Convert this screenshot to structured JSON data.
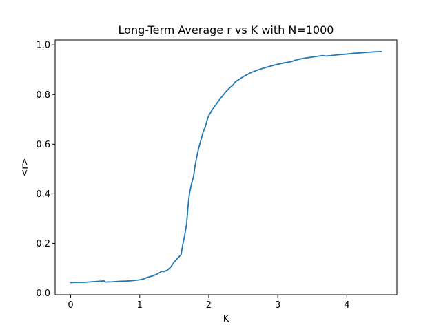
{
  "chart_data": {
    "type": "line",
    "title": "Long-Term Average r vs K with N=1000",
    "xlabel": "K",
    "ylabel": "<r>",
    "xlim": [
      -0.225,
      4.725
    ],
    "ylim": [
      -0.007,
      1.02
    ],
    "xticks": [
      0,
      1,
      2,
      3,
      4
    ],
    "xtick_labels": [
      "0",
      "1",
      "2",
      "3",
      "4"
    ],
    "yticks": [
      0.0,
      0.2,
      0.4,
      0.6,
      0.8,
      1.0
    ],
    "ytick_labels": [
      "0.0",
      "0.2",
      "0.4",
      "0.6",
      "0.8",
      "1.0"
    ],
    "grid": false,
    "legend": "none",
    "series": [
      {
        "color": "#1f77b4",
        "x": [
          0.0,
          0.1,
          0.2,
          0.3,
          0.4,
          0.45,
          0.48,
          0.5,
          0.6,
          0.7,
          0.8,
          0.9,
          1.0,
          1.05,
          1.1,
          1.2,
          1.25,
          1.3,
          1.32,
          1.35,
          1.4,
          1.45,
          1.5,
          1.55,
          1.6,
          1.62,
          1.65,
          1.68,
          1.7,
          1.72,
          1.75,
          1.78,
          1.8,
          1.82,
          1.85,
          1.88,
          1.9,
          1.92,
          1.95,
          1.98,
          2.0,
          2.05,
          2.1,
          2.15,
          2.2,
          2.25,
          2.3,
          2.35,
          2.38,
          2.4,
          2.5,
          2.6,
          2.7,
          2.8,
          2.9,
          3.0,
          3.1,
          3.2,
          3.25,
          3.3,
          3.4,
          3.5,
          3.6,
          3.65,
          3.7,
          3.8,
          3.9,
          4.0,
          4.1,
          4.2,
          4.3,
          4.4,
          4.5
        ],
        "y": [
          0.042,
          0.043,
          0.043,
          0.045,
          0.047,
          0.048,
          0.049,
          0.044,
          0.045,
          0.047,
          0.048,
          0.05,
          0.053,
          0.056,
          0.062,
          0.07,
          0.076,
          0.084,
          0.088,
          0.086,
          0.092,
          0.105,
          0.125,
          0.14,
          0.155,
          0.19,
          0.23,
          0.28,
          0.35,
          0.4,
          0.44,
          0.47,
          0.51,
          0.54,
          0.58,
          0.61,
          0.63,
          0.65,
          0.67,
          0.7,
          0.715,
          0.738,
          0.758,
          0.777,
          0.795,
          0.812,
          0.826,
          0.838,
          0.85,
          0.854,
          0.872,
          0.887,
          0.898,
          0.907,
          0.915,
          0.922,
          0.928,
          0.933,
          0.938,
          0.942,
          0.947,
          0.951,
          0.955,
          0.957,
          0.955,
          0.958,
          0.961,
          0.963,
          0.966,
          0.968,
          0.97,
          0.972,
          0.973
        ]
      }
    ]
  }
}
